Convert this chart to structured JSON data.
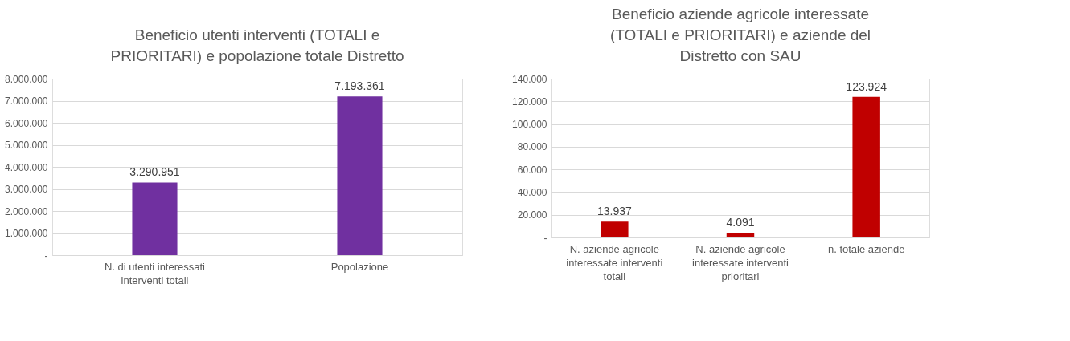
{
  "chart_data": [
    {
      "type": "bar",
      "title": "Beneficio utenti interventi (TOTALI e PRIORITARI) e popolazione totale Distretto",
      "categories": [
        "N. di utenti interessati  interventi totali",
        "Popolazione"
      ],
      "values": [
        3290951,
        7193361
      ],
      "value_labels": [
        "3.290.951",
        "7.193.361"
      ],
      "color": "#7030a0",
      "ylim": [
        0,
        8000000
      ],
      "yticks": [
        {
          "value": 0,
          "label": "-"
        },
        {
          "value": 1000000,
          "label": "1.000.000"
        },
        {
          "value": 2000000,
          "label": "2.000.000"
        },
        {
          "value": 3000000,
          "label": "3.000.000"
        },
        {
          "value": 4000000,
          "label": "4.000.000"
        },
        {
          "value": 5000000,
          "label": "5.000.000"
        },
        {
          "value": 6000000,
          "label": "6.000.000"
        },
        {
          "value": 7000000,
          "label": "7.000.000"
        },
        {
          "value": 8000000,
          "label": "8.000.000"
        }
      ],
      "grid": "y"
    },
    {
      "type": "bar",
      "title": "Beneficio aziende agricole interessate (TOTALI e PRIORITARI) e aziende del Distretto con SAU",
      "categories": [
        "N. aziende agricole interessate interventi totali",
        "N. aziende agricole interessate interventi prioritari",
        "n. totale aziende"
      ],
      "values": [
        13937,
        4091,
        123924
      ],
      "value_labels": [
        "13.937",
        "4.091",
        "123.924"
      ],
      "color": "#c00000",
      "ylim": [
        0,
        140000
      ],
      "yticks": [
        {
          "value": 0,
          "label": "-"
        },
        {
          "value": 20000,
          "label": "20.000"
        },
        {
          "value": 40000,
          "label": "40.000"
        },
        {
          "value": 60000,
          "label": "60.000"
        },
        {
          "value": 80000,
          "label": "80.000"
        },
        {
          "value": 100000,
          "label": "100.000"
        },
        {
          "value": 120000,
          "label": "120.000"
        },
        {
          "value": 140000,
          "label": "140.000"
        }
      ],
      "grid": "y"
    }
  ]
}
